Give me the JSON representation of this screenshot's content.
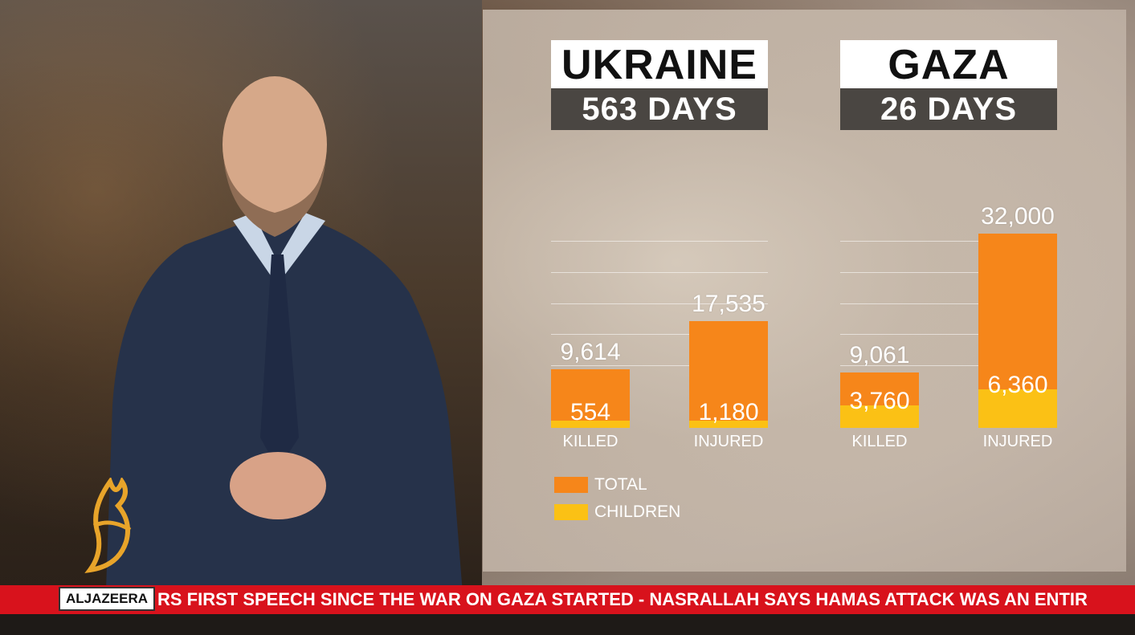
{
  "chart_data": [
    {
      "type": "bar",
      "title": "UKRAINE",
      "subtitle": "563 DAYS",
      "categories": [
        "KILLED",
        "INJURED"
      ],
      "series": [
        {
          "name": "TOTAL",
          "values": [
            9614,
            17535
          ],
          "labels": [
            "9,614",
            "17,535"
          ]
        },
        {
          "name": "CHILDREN",
          "values": [
            554,
            1180
          ],
          "labels": [
            "554",
            "1,180"
          ]
        }
      ],
      "ylim": [
        0,
        33000
      ]
    },
    {
      "type": "bar",
      "title": "GAZA",
      "subtitle": "26 DAYS",
      "categories": [
        "KILLED",
        "INJURED"
      ],
      "series": [
        {
          "name": "TOTAL",
          "values": [
            9061,
            32000
          ],
          "labels": [
            "9,061",
            "32,000"
          ]
        },
        {
          "name": "CHILDREN",
          "values": [
            3760,
            6360
          ],
          "labels": [
            "3,760",
            "6,360"
          ]
        }
      ],
      "ylim": [
        0,
        33000
      ]
    }
  ],
  "legend": [
    {
      "label": "TOTAL",
      "color": "#f6861a"
    },
    {
      "label": "CHILDREN",
      "color": "#fbc115"
    }
  ],
  "ticker": {
    "brand": "ALJAZEERA",
    "text": "RS FIRST SPEECH SINCE THE WAR ON GAZA STARTED   -   NASRALLAH SAYS HAMAS ATTACK WAS AN ENTIR"
  },
  "icons": {
    "logo": "al-jazeera-logo-icon"
  }
}
